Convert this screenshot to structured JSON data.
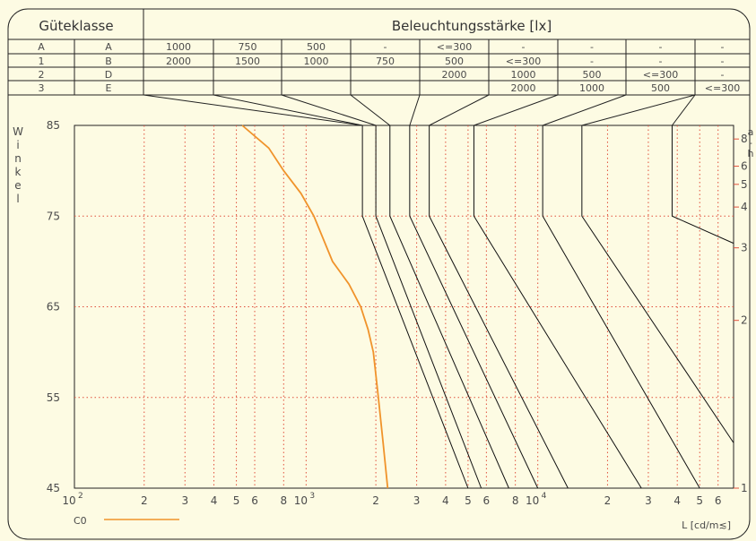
{
  "chart_data": {
    "type": "line",
    "table": {
      "col1_header": "Güteklasse",
      "col2_header": "Beleuchtungsstärke [lx]",
      "rows": [
        {
          "klasse1": "A",
          "klasse2": "A",
          "cells": [
            "1000",
            "750",
            "500",
            "-",
            "<=300",
            "-",
            "-",
            "-",
            "-"
          ]
        },
        {
          "klasse1": "1",
          "klasse2": "B",
          "cells": [
            "2000",
            "1500",
            "1000",
            "750",
            "500",
            "<=300",
            "-",
            "-",
            "-"
          ]
        },
        {
          "klasse1": "2",
          "klasse2": "D",
          "cells": [
            "",
            "",
            "",
            "",
            "2000",
            "1000",
            "500",
            "<=300",
            "-"
          ]
        },
        {
          "klasse1": "3",
          "klasse2": "E",
          "cells": [
            "",
            "",
            "",
            "",
            "",
            "2000",
            "1000",
            "500",
            "<=300"
          ]
        }
      ]
    },
    "y_axis": {
      "label_chars": [
        "W",
        "i",
        "n",
        "k",
        "e",
        "l"
      ],
      "ticks": [
        "85",
        "75",
        "65",
        "55",
        "45"
      ],
      "ylim": [
        45,
        85
      ]
    },
    "x_axis": {
      "scale": "log",
      "xlim": [
        100,
        70000
      ],
      "ticks": [
        {
          "v": 100,
          "base": "10",
          "sup": "2"
        },
        {
          "v": 200,
          "base": "2"
        },
        {
          "v": 300,
          "base": "3"
        },
        {
          "v": 400,
          "base": "4"
        },
        {
          "v": 500,
          "base": "5"
        },
        {
          "v": 600,
          "base": "6"
        },
        {
          "v": 800,
          "base": "8"
        },
        {
          "v": 1000,
          "base": "10",
          "sup": "3"
        },
        {
          "v": 2000,
          "base": "2"
        },
        {
          "v": 3000,
          "base": "3"
        },
        {
          "v": 4000,
          "base": "4"
        },
        {
          "v": 5000,
          "base": "5"
        },
        {
          "v": 6000,
          "base": "6"
        },
        {
          "v": 8000,
          "base": "8"
        },
        {
          "v": 10000,
          "base": "10",
          "sup": "4"
        },
        {
          "v": 20000,
          "base": "2"
        },
        {
          "v": 30000,
          "base": "3"
        },
        {
          "v": 40000,
          "base": "4"
        },
        {
          "v": 50000,
          "base": "5"
        },
        {
          "v": 60000,
          "base": "6"
        }
      ],
      "unit_label": "L [cd/m≲]"
    },
    "right_axis": {
      "label_chars": [
        "a",
        "-",
        "h"
      ],
      "ticks": [
        {
          "label": "8",
          "angle": 83.5
        },
        {
          "label": "6",
          "angle": 80.5
        },
        {
          "label": "5",
          "angle": 78.5
        },
        {
          "label": "4",
          "angle": 76
        },
        {
          "label": "3",
          "angle": 71.5
        },
        {
          "label": "2",
          "angle": 63.5
        },
        {
          "label": "1",
          "angle": 45
        }
      ]
    },
    "series": [
      {
        "name": "C0",
        "color": "#f0932b",
        "points": [
          [
            530,
            85
          ],
          [
            690,
            82.5
          ],
          [
            800,
            80
          ],
          [
            950,
            77.5
          ],
          [
            1080,
            75
          ],
          [
            1300,
            70
          ],
          [
            1530,
            67.5
          ],
          [
            1720,
            65
          ],
          [
            1850,
            62.5
          ],
          [
            1950,
            60
          ],
          [
            2050,
            55
          ],
          [
            2150,
            50
          ],
          [
            2250,
            45
          ]
        ]
      }
    ],
    "limit_lines": [
      {
        "top": 1750,
        "knee": 1750,
        "end": [
          5000,
          45
        ]
      },
      {
        "top": 2000,
        "knee": 2000,
        "end": [
          5700,
          45
        ]
      },
      {
        "top": 2300,
        "knee": 2300,
        "end": [
          7500,
          45
        ]
      },
      {
        "top": 2800,
        "knee": 2800,
        "end": [
          10000,
          45
        ]
      },
      {
        "top": 3400,
        "knee": 3400,
        "end": [
          13500,
          45
        ]
      },
      {
        "top": 5300,
        "knee": 5300,
        "end": [
          28000,
          45
        ]
      },
      {
        "top": 10500,
        "knee": 10500,
        "end": [
          50000,
          45
        ]
      },
      {
        "top": 15500,
        "knee": 15500,
        "end": [
          70000,
          50
        ]
      },
      {
        "top": 38000,
        "knee": 38000,
        "end": [
          70000,
          72
        ]
      }
    ],
    "colors": {
      "grid": "#e0503c",
      "curve": "#f0932b",
      "frame": "#000000",
      "background": "#fdfbe3"
    }
  }
}
